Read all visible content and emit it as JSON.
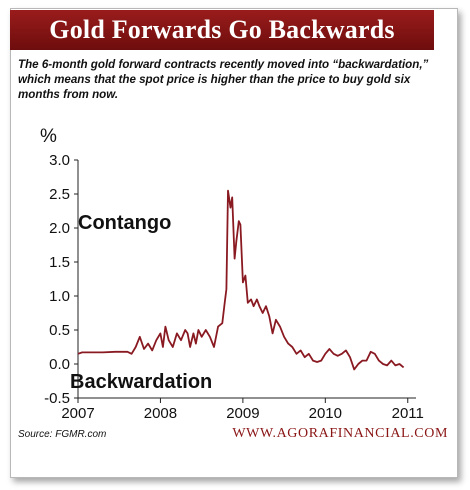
{
  "header": {
    "title": "Gold Forwards Go Backwards",
    "subtitle": "The 6-month gold forward contracts recently moved into “backwardation,” which means that the spot price is higher than the price to buy gold six months from now."
  },
  "footer": {
    "source": "Source: FGMR.com",
    "website": "WWW.AGORAFINANCIAL.COM"
  },
  "colors": {
    "banner": "#8a1515",
    "line": "#8a1a22",
    "grid": "#c8c8c8"
  },
  "chart_data": {
    "type": "line",
    "title": "Gold Forwards Go Backwards",
    "ylabel": "%",
    "xlabel": "",
    "ylim": [
      -0.5,
      3.0
    ],
    "xlim": [
      2007.0,
      2011.1
    ],
    "yticks": [
      3.0,
      2.5,
      2.0,
      1.5,
      1.0,
      0.5,
      0.0,
      -0.5
    ],
    "ytick_labels": [
      "3.0",
      "2.5",
      "2.0",
      "1.5",
      "1.0",
      "0.5",
      "0.0",
      "-0.5"
    ],
    "xticks": [
      2007,
      2008,
      2009,
      2010,
      2011
    ],
    "xtick_labels": [
      "2007",
      "2008",
      "2009",
      "2010",
      "2011"
    ],
    "grid": false,
    "annotations": [
      {
        "text": "Contango",
        "x": 2007.05,
        "y": 2.0
      },
      {
        "text": "Backwardation",
        "x": 2007.0,
        "y": -0.25
      }
    ],
    "series": [
      {
        "name": "",
        "x": [
          2007.0,
          2007.05,
          2007.15,
          2007.3,
          2007.45,
          2007.6,
          2007.65,
          2007.7,
          2007.75,
          2007.8,
          2007.85,
          2007.9,
          2007.95,
          2008.0,
          2008.03,
          2008.06,
          2008.1,
          2008.15,
          2008.2,
          2008.25,
          2008.3,
          2008.33,
          2008.36,
          2008.4,
          2008.43,
          2008.46,
          2008.5,
          2008.55,
          2008.6,
          2008.65,
          2008.7,
          2008.75,
          2008.78,
          2008.8,
          2008.82,
          2008.85,
          2008.87,
          2008.9,
          2008.92,
          2008.95,
          2008.97,
          2009.0,
          2009.03,
          2009.06,
          2009.1,
          2009.13,
          2009.17,
          2009.2,
          2009.24,
          2009.28,
          2009.32,
          2009.36,
          2009.4,
          2009.45,
          2009.5,
          2009.55,
          2009.6,
          2009.65,
          2009.7,
          2009.75,
          2009.8,
          2009.85,
          2009.9,
          2009.95,
          2010.0,
          2010.05,
          2010.1,
          2010.15,
          2010.2,
          2010.25,
          2010.3,
          2010.35,
          2010.4,
          2010.45,
          2010.5,
          2010.55,
          2010.6,
          2010.65,
          2010.7,
          2010.75,
          2010.8,
          2010.85,
          2010.9,
          2010.95
        ],
        "values": [
          0.15,
          0.17,
          0.17,
          0.17,
          0.18,
          0.18,
          0.15,
          0.25,
          0.4,
          0.22,
          0.3,
          0.2,
          0.35,
          0.45,
          0.25,
          0.55,
          0.35,
          0.25,
          0.45,
          0.35,
          0.5,
          0.45,
          0.25,
          0.45,
          0.3,
          0.5,
          0.4,
          0.5,
          0.4,
          0.25,
          0.55,
          0.6,
          0.9,
          1.1,
          2.55,
          2.3,
          2.45,
          1.55,
          1.8,
          2.1,
          2.05,
          1.2,
          1.3,
          0.9,
          0.95,
          0.85,
          0.95,
          0.85,
          0.75,
          0.85,
          0.7,
          0.45,
          0.65,
          0.55,
          0.4,
          0.3,
          0.25,
          0.15,
          0.2,
          0.1,
          0.15,
          0.05,
          0.03,
          0.05,
          0.15,
          0.22,
          0.15,
          0.12,
          0.15,
          0.2,
          0.1,
          -0.08,
          0.0,
          0.05,
          0.05,
          0.18,
          0.15,
          0.05,
          0.0,
          -0.02,
          0.05,
          -0.02,
          0.0,
          -0.05
        ]
      }
    ]
  }
}
